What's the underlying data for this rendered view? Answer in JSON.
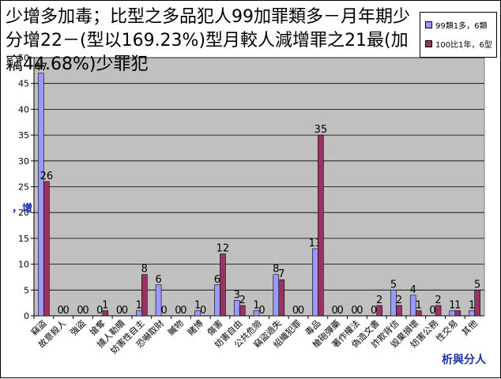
{
  "title": "少增多加毒；比型之多品犯人99加罪類多－月年期少分增22－(型以169.23%)型月較人減增罪之21最(加竊44.68%)少罪犯",
  "side_label": "，增",
  "source": "析與分人",
  "chart_data": {
    "type": "bar",
    "title": "少增多加毒；比型之多品犯人99加罪類多－月年期少分增22－(型以169.23%)型月較人減增罪之21最(加竊44.68%)少罪犯",
    "categories": [
      "竊盜",
      "故意殺人",
      "強盜",
      "搶奪",
      "擄人勒贖",
      "妨害性自主",
      "恐嚇取財",
      "贓物",
      "賭博",
      "傷害",
      "妨害自由",
      "公共危險",
      "竊盜過失",
      "組織犯罪",
      "毒品",
      "槍砲彈藥",
      "著作權法",
      "偽造文書",
      "詐欺背信",
      "毀棄損壞",
      "妨害公務",
      "性交易",
      "其他"
    ],
    "series": [
      {
        "name": "99類1多，6類",
        "color": "#9999ff",
        "values": [
          47,
          0,
          0,
          0,
          0,
          1,
          6,
          0,
          1,
          6,
          3,
          1,
          8,
          0,
          13,
          0,
          0,
          0,
          5,
          4,
          0,
          1,
          1
        ]
      },
      {
        "name": "100比1年，6型",
        "color": "#993366",
        "values": [
          26,
          0,
          0,
          1,
          0,
          8,
          0,
          0,
          0,
          12,
          2,
          0,
          7,
          0,
          35,
          0,
          0,
          2,
          2,
          1,
          2,
          1,
          5
        ]
      }
    ],
    "ylim": [
      0,
      50
    ],
    "yticks": [
      0,
      5,
      10,
      15,
      20,
      25,
      30,
      35,
      40,
      45,
      50
    ],
    "grid": true,
    "legend": "top-right",
    "plot_background": "#c0c0c0"
  }
}
